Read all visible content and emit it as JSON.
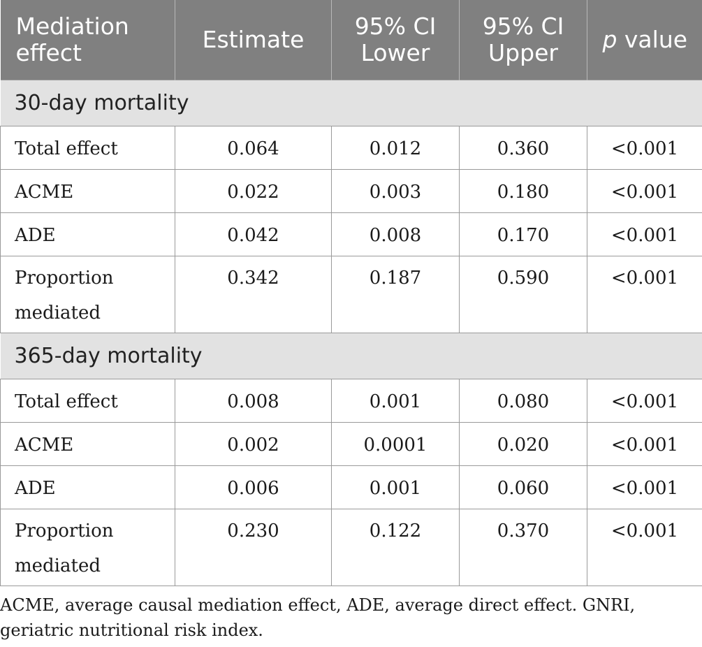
{
  "table": {
    "headers": {
      "col1": "Mediation effect",
      "col2": "Estimate",
      "col3": "95% CI Lower",
      "col4": "95% CI Upper",
      "col5_italic": "p",
      "col5_rest": " value"
    },
    "sections": [
      {
        "title": "30-day mortality",
        "rows": [
          {
            "label": "Total effect",
            "estimate": "0.064",
            "ci_lower": "0.012",
            "ci_upper": "0.360",
            "p": "<0.001"
          },
          {
            "label": "ACME",
            "estimate": "0.022",
            "ci_lower": "0.003",
            "ci_upper": "0.180",
            "p": "<0.001"
          },
          {
            "label": "ADE",
            "estimate": "0.042",
            "ci_lower": "0.008",
            "ci_upper": "0.170",
            "p": "<0.001"
          },
          {
            "label": "Proportion mediated",
            "estimate": "0.342",
            "ci_lower": "0.187",
            "ci_upper": "0.590",
            "p": "<0.001"
          }
        ]
      },
      {
        "title": "365-day mortality",
        "rows": [
          {
            "label": "Total effect",
            "estimate": "0.008",
            "ci_lower": "0.001",
            "ci_upper": "0.080",
            "p": "<0.001"
          },
          {
            "label": "ACME",
            "estimate": "0.002",
            "ci_lower": "0.0001",
            "ci_upper": "0.020",
            "p": "<0.001"
          },
          {
            "label": "ADE",
            "estimate": "0.006",
            "ci_lower": "0.001",
            "ci_upper": "0.060",
            "p": "<0.001"
          },
          {
            "label": "Proportion mediated",
            "estimate": "0.230",
            "ci_lower": "0.122",
            "ci_upper": "0.370",
            "p": "<0.001"
          }
        ]
      }
    ]
  },
  "footnote": "ACME, average causal mediation effect, ADE, average direct effect. GNRI, geriatric nutritional risk index.",
  "colors": {
    "header_bg": "#808080",
    "section_bg": "#e2e2e2",
    "border": "#9a9a9a"
  }
}
